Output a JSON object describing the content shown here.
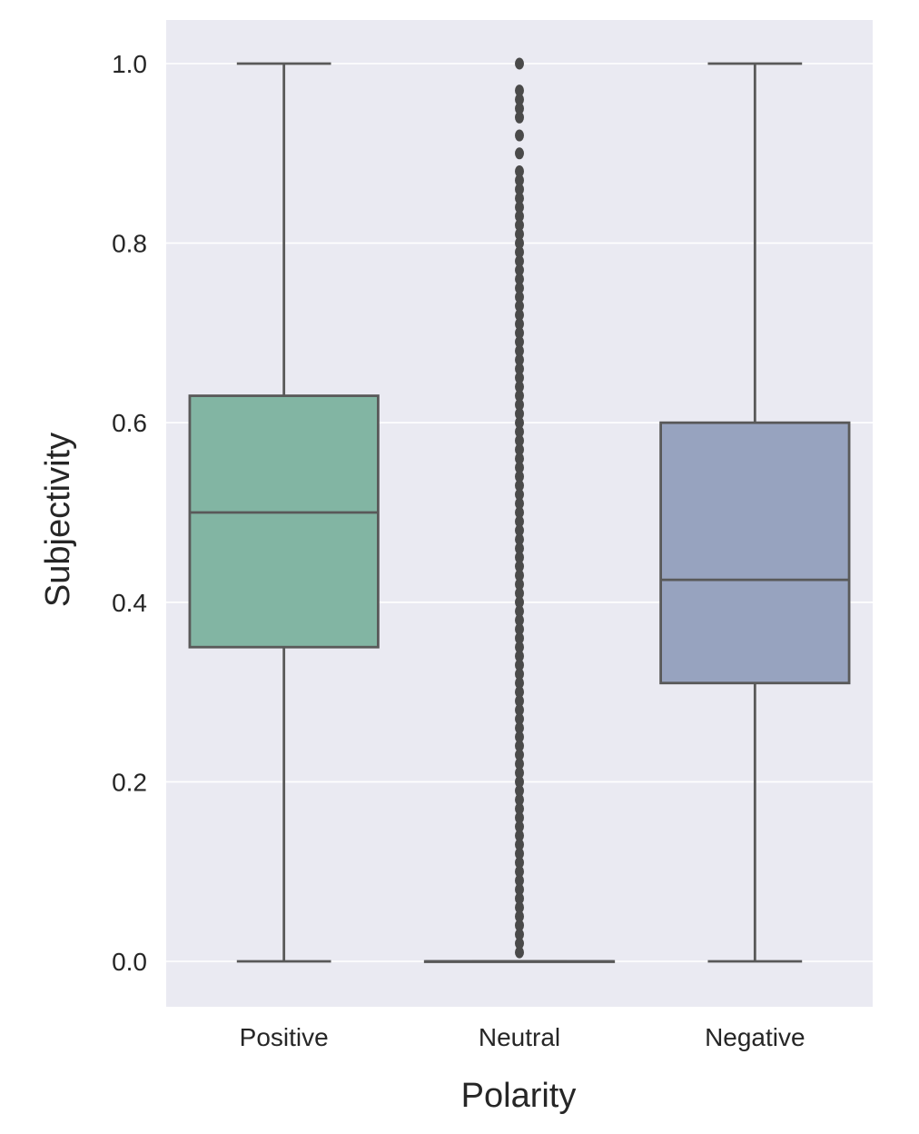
{
  "chart_data": {
    "type": "box",
    "title": "",
    "xlabel": "Polarity",
    "ylabel": "Subjectivity",
    "ylim": [
      -0.05,
      1.05
    ],
    "yticks": [
      0.0,
      0.2,
      0.4,
      0.6,
      0.8,
      1.0
    ],
    "ytick_labels": [
      "0.0",
      "0.2",
      "0.4",
      "0.6",
      "0.8",
      "1.0"
    ],
    "grid": true,
    "categories": [
      "Positive",
      "Neutral",
      "Negative"
    ],
    "boxes": [
      {
        "category": "Positive",
        "color": "#82b5a3",
        "whisker_low": 0.0,
        "q1": 0.35,
        "median": 0.5,
        "q3": 0.63,
        "whisker_high": 1.0,
        "outliers": []
      },
      {
        "category": "Neutral",
        "color": "#ef9b7e",
        "whisker_low": 0.0,
        "q1": 0.0,
        "median": 0.0,
        "q3": 0.0,
        "whisker_high": 0.0,
        "outliers": [
          0.01,
          0.02,
          0.03,
          0.04,
          0.05,
          0.06,
          0.07,
          0.08,
          0.09,
          0.1,
          0.11,
          0.12,
          0.13,
          0.14,
          0.15,
          0.16,
          0.17,
          0.18,
          0.19,
          0.2,
          0.21,
          0.22,
          0.23,
          0.24,
          0.25,
          0.26,
          0.27,
          0.28,
          0.29,
          0.3,
          0.31,
          0.32,
          0.33,
          0.34,
          0.35,
          0.36,
          0.37,
          0.38,
          0.39,
          0.4,
          0.41,
          0.42,
          0.43,
          0.44,
          0.45,
          0.46,
          0.47,
          0.48,
          0.49,
          0.5,
          0.51,
          0.52,
          0.53,
          0.54,
          0.55,
          0.56,
          0.57,
          0.58,
          0.59,
          0.6,
          0.61,
          0.62,
          0.63,
          0.64,
          0.65,
          0.66,
          0.67,
          0.68,
          0.69,
          0.7,
          0.71,
          0.72,
          0.73,
          0.74,
          0.75,
          0.76,
          0.77,
          0.78,
          0.79,
          0.8,
          0.81,
          0.82,
          0.83,
          0.84,
          0.85,
          0.86,
          0.87,
          0.88,
          0.9,
          0.92,
          0.94,
          0.95,
          0.96,
          0.97,
          1.0
        ]
      },
      {
        "category": "Negative",
        "color": "#97a3bf",
        "whisker_low": 0.0,
        "q1": 0.31,
        "median": 0.425,
        "q3": 0.6,
        "whisker_high": 1.0,
        "outliers": []
      }
    ]
  }
}
